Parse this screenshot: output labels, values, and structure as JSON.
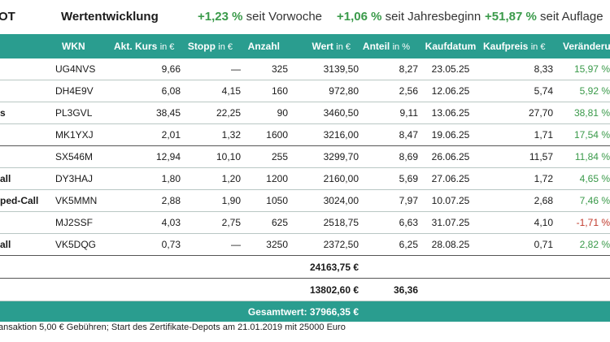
{
  "header": {
    "left_fragment": "OT",
    "title": "Wertentwicklung",
    "week_value": "+1,23 %",
    "week_label": "seit Vorwoche",
    "ytd_value": "+1,06 %",
    "ytd_label": "seit Jahresbeginn",
    "inception_value": "+51,87 %",
    "inception_label": "seit Auflage"
  },
  "columns": {
    "wkn": "WKN",
    "kurs": "Akt. Kurs",
    "kurs_unit": "in €",
    "stopp": "Stopp",
    "stopp_unit": "in €",
    "anzahl": "Anzahl",
    "wert": "Wert",
    "wert_unit": "in €",
    "anteil": "Anteil",
    "anteil_unit": "in %",
    "kaufdatum": "Kaufdatum",
    "kaufpreis": "Kaufpreis",
    "kaufpreis_unit": "in €",
    "veraenderung": "Veränderung"
  },
  "rows": [
    {
      "name": "",
      "wkn": "UG4NVS",
      "kurs": "9,66",
      "stopp": "—",
      "anzahl": "325",
      "wert": "3139,50",
      "anteil": "8,27",
      "kaufdatum": "23.05.25",
      "kaufpreis": "8,33",
      "change": "15,97 %",
      "trend": "up"
    },
    {
      "name": "",
      "wkn": "DH4E9V",
      "kurs": "6,08",
      "stopp": "4,15",
      "anzahl": "160",
      "wert": "972,80",
      "anteil": "2,56",
      "kaufdatum": "12.06.25",
      "kaufpreis": "5,74",
      "change": "5,92 %",
      "trend": "up"
    },
    {
      "name": "s",
      "wkn": "PL3GVL",
      "kurs": "38,45",
      "stopp": "22,25",
      "anzahl": "90",
      "wert": "3460,50",
      "anteil": "9,11",
      "kaufdatum": "13.06.25",
      "kaufpreis": "27,70",
      "change": "38,81 %",
      "trend": "up"
    },
    {
      "name": "",
      "wkn": "MK1YXJ",
      "kurs": "2,01",
      "stopp": "1,32",
      "anzahl": "1600",
      "wert": "3216,00",
      "anteil": "8,47",
      "kaufdatum": "19.06.25",
      "kaufpreis": "1,71",
      "change": "17,54 %",
      "trend": "up"
    },
    {
      "name": "",
      "wkn": "SX546M",
      "kurs": "12,94",
      "stopp": "10,10",
      "anzahl": "255",
      "wert": "3299,70",
      "anteil": "8,69",
      "kaufdatum": "26.06.25",
      "kaufpreis": "11,57",
      "change": "11,84 %",
      "trend": "up"
    },
    {
      "name": "all",
      "wkn": "DY3HAJ",
      "kurs": "1,80",
      "stopp": "1,20",
      "anzahl": "1200",
      "wert": "2160,00",
      "anteil": "5,69",
      "kaufdatum": "27.06.25",
      "kaufpreis": "1,72",
      "change": "4,65 %",
      "trend": "up"
    },
    {
      "name": "ped-Call",
      "wkn": "VK5MMN",
      "kurs": "2,88",
      "stopp": "1,90",
      "anzahl": "1050",
      "wert": "3024,00",
      "anteil": "7,97",
      "kaufdatum": "10.07.25",
      "kaufpreis": "2,68",
      "change": "7,46 %",
      "trend": "up"
    },
    {
      "name": "",
      "wkn": "MJ2SSF",
      "kurs": "4,03",
      "stopp": "2,75",
      "anzahl": "625",
      "wert": "2518,75",
      "anteil": "6,63",
      "kaufdatum": "31.07.25",
      "kaufpreis": "4,10",
      "change": "-1,71 %",
      "trend": "down"
    },
    {
      "name": "all",
      "wkn": "VK5DQG",
      "kurs": "0,73",
      "stopp": "—",
      "anzahl": "3250",
      "wert": "2372,50",
      "anteil": "6,25",
      "kaufdatum": "28.08.25",
      "kaufpreis": "0,71",
      "change": "2,82 %",
      "trend": "up"
    }
  ],
  "summary": {
    "depot_value": "24163,75 €",
    "cash_value": "13802,60 €",
    "cash_share": "36,36",
    "total": "Gesamtwert: 37966,35 €"
  },
  "footnote": "ansaktion 5,00 € Gebühren; Start des Zertifikate-Depots am 21.01.2019 mit 25000 Euro",
  "colors": {
    "accent": "#2a9d8f",
    "positive": "#3a9a4a",
    "negative": "#c0392b"
  }
}
